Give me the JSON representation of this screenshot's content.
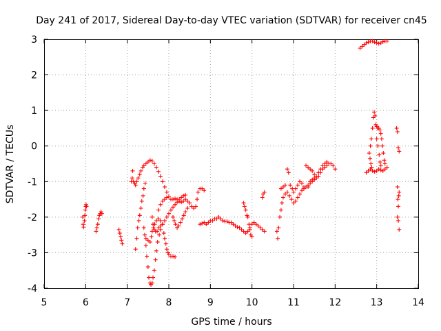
{
  "chart_data": {
    "type": "scatter",
    "title": "Day 241 of 2017, Sidereal Day-to-day VTEC variation (SDTVAR) for receiver cn45",
    "xlabel": "GPS time / hours",
    "ylabel": "SDTVAR / TECUs",
    "xlim": [
      5,
      14
    ],
    "ylim": [
      -4,
      3
    ],
    "xticks": [
      "5",
      "6",
      "7",
      "8",
      "9",
      "10",
      "11",
      "12",
      "13",
      "14"
    ],
    "yticks": [
      "-4",
      "-3",
      "-2",
      "-1",
      "0",
      "1",
      "2",
      "3"
    ],
    "grid": true,
    "marker": "plus",
    "series": [
      {
        "name": "SDTVAR",
        "color": "#ff0000",
        "points": [
          [
            5.93,
            -2.0
          ],
          [
            5.94,
            -2.2
          ],
          [
            5.95,
            -2.28
          ],
          [
            5.97,
            -2.1
          ],
          [
            5.98,
            -1.95
          ],
          [
            5.99,
            -1.8
          ],
          [
            6.0,
            -1.7
          ],
          [
            6.01,
            -1.65
          ],
          [
            6.02,
            -1.7
          ],
          [
            6.25,
            -2.4
          ],
          [
            6.27,
            -2.3
          ],
          [
            6.29,
            -2.2
          ],
          [
            6.31,
            -2.05
          ],
          [
            6.33,
            -1.95
          ],
          [
            6.35,
            -1.9
          ],
          [
            6.37,
            -1.85
          ],
          [
            6.39,
            -1.9
          ],
          [
            6.8,
            -2.35
          ],
          [
            6.82,
            -2.45
          ],
          [
            6.84,
            -2.55
          ],
          [
            6.86,
            -2.65
          ],
          [
            6.88,
            -2.75
          ],
          [
            7.1,
            -1.0
          ],
          [
            7.12,
            -0.9
          ],
          [
            7.13,
            -0.7
          ],
          [
            7.15,
            -1.0
          ],
          [
            7.18,
            -1.05
          ],
          [
            7.2,
            -1.1
          ],
          [
            7.23,
            -1.0
          ],
          [
            7.26,
            -0.9
          ],
          [
            7.3,
            -0.8
          ],
          [
            7.33,
            -0.7
          ],
          [
            7.37,
            -0.6
          ],
          [
            7.4,
            -0.55
          ],
          [
            7.45,
            -0.5
          ],
          [
            7.5,
            -0.45
          ],
          [
            7.55,
            -0.4
          ],
          [
            7.6,
            -0.42
          ],
          [
            7.65,
            -0.5
          ],
          [
            7.7,
            -0.6
          ],
          [
            7.75,
            -0.72
          ],
          [
            7.8,
            -0.85
          ],
          [
            7.85,
            -1.0
          ],
          [
            7.9,
            -1.15
          ],
          [
            7.95,
            -1.3
          ],
          [
            8.0,
            -1.42
          ],
          [
            8.05,
            -1.5
          ],
          [
            8.1,
            -1.5
          ],
          [
            8.15,
            -1.48
          ],
          [
            8.2,
            -1.5
          ],
          [
            8.25,
            -1.55
          ],
          [
            8.3,
            -1.58
          ],
          [
            8.35,
            -1.55
          ],
          [
            8.4,
            -1.5
          ],
          [
            8.45,
            -1.55
          ],
          [
            8.5,
            -1.6
          ],
          [
            8.55,
            -1.7
          ],
          [
            8.6,
            -1.75
          ],
          [
            8.65,
            -1.7
          ],
          [
            8.68,
            -1.5
          ],
          [
            7.2,
            -2.9
          ],
          [
            7.23,
            -2.6
          ],
          [
            7.25,
            -2.3
          ],
          [
            7.28,
            -2.1
          ],
          [
            7.3,
            -1.95
          ],
          [
            7.33,
            -1.75
          ],
          [
            7.35,
            -1.55
          ],
          [
            7.38,
            -1.4
          ],
          [
            7.4,
            -1.2
          ],
          [
            7.43,
            -1.05
          ],
          [
            7.4,
            -2.3
          ],
          [
            7.42,
            -2.5
          ],
          [
            7.45,
            -2.8
          ],
          [
            7.47,
            -3.1
          ],
          [
            7.5,
            -3.4
          ],
          [
            7.52,
            -3.7
          ],
          [
            7.55,
            -3.85
          ],
          [
            7.57,
            -3.9
          ],
          [
            7.6,
            -3.85
          ],
          [
            7.62,
            -3.7
          ],
          [
            7.65,
            -3.5
          ],
          [
            7.68,
            -3.2
          ],
          [
            7.7,
            -2.95
          ],
          [
            7.73,
            -2.7
          ],
          [
            7.77,
            -2.5
          ],
          [
            7.8,
            -2.35
          ],
          [
            7.85,
            -2.2
          ],
          [
            7.9,
            -2.1
          ],
          [
            7.95,
            -2.0
          ],
          [
            8.0,
            -1.9
          ],
          [
            8.05,
            -1.8
          ],
          [
            8.1,
            -1.72
          ],
          [
            8.15,
            -1.65
          ],
          [
            8.2,
            -1.58
          ],
          [
            8.25,
            -1.5
          ],
          [
            8.3,
            -1.45
          ],
          [
            8.35,
            -1.4
          ],
          [
            8.4,
            -1.38
          ],
          [
            7.45,
            -2.6
          ],
          [
            7.5,
            -2.65
          ],
          [
            7.55,
            -2.7
          ],
          [
            7.58,
            -2.55
          ],
          [
            7.6,
            -2.4
          ],
          [
            7.63,
            -2.3
          ],
          [
            7.66,
            -2.2
          ],
          [
            7.7,
            -2.1
          ],
          [
            7.75,
            -2.05
          ],
          [
            7.8,
            -2.1
          ],
          [
            7.85,
            -2.2
          ],
          [
            7.88,
            -2.45
          ],
          [
            7.9,
            -2.6
          ],
          [
            7.93,
            -2.75
          ],
          [
            7.95,
            -2.9
          ],
          [
            7.98,
            -3.0
          ],
          [
            8.0,
            -3.05
          ],
          [
            8.05,
            -3.1
          ],
          [
            8.1,
            -3.1
          ],
          [
            8.15,
            -3.12
          ],
          [
            7.6,
            -2.0
          ],
          [
            7.62,
            -2.2
          ],
          [
            7.65,
            -2.35
          ],
          [
            7.68,
            -2.4
          ],
          [
            7.72,
            -2.4
          ],
          [
            7.76,
            -2.3
          ],
          [
            7.8,
            -2.25
          ],
          [
            7.75,
            -1.8
          ],
          [
            7.8,
            -1.65
          ],
          [
            7.85,
            -1.55
          ],
          [
            7.9,
            -1.5
          ],
          [
            7.95,
            -1.45
          ],
          [
            8.1,
            -2.0
          ],
          [
            8.13,
            -2.1
          ],
          [
            8.16,
            -2.2
          ],
          [
            8.2,
            -2.3
          ],
          [
            8.24,
            -2.25
          ],
          [
            8.28,
            -2.15
          ],
          [
            8.32,
            -2.05
          ],
          [
            8.36,
            -1.95
          ],
          [
            8.4,
            -1.85
          ],
          [
            8.45,
            -1.75
          ],
          [
            8.7,
            -1.3
          ],
          [
            8.75,
            -1.2
          ],
          [
            8.8,
            -1.2
          ],
          [
            8.85,
            -1.25
          ],
          [
            8.75,
            -2.2
          ],
          [
            8.8,
            -2.18
          ],
          [
            8.85,
            -2.15
          ],
          [
            8.9,
            -2.2
          ],
          [
            8.95,
            -2.15
          ],
          [
            9.0,
            -2.1
          ],
          [
            9.05,
            -2.1
          ],
          [
            9.1,
            -2.05
          ],
          [
            9.15,
            -2.05
          ],
          [
            9.2,
            -2.0
          ],
          [
            9.25,
            -2.05
          ],
          [
            9.3,
            -2.1
          ],
          [
            9.35,
            -2.12
          ],
          [
            9.4,
            -2.12
          ],
          [
            9.45,
            -2.15
          ],
          [
            9.5,
            -2.15
          ],
          [
            9.55,
            -2.2
          ],
          [
            9.6,
            -2.25
          ],
          [
            9.65,
            -2.28
          ],
          [
            9.7,
            -2.3
          ],
          [
            9.75,
            -2.35
          ],
          [
            9.8,
            -2.4
          ],
          [
            9.85,
            -2.45
          ],
          [
            9.9,
            -2.4
          ],
          [
            9.95,
            -2.3
          ],
          [
            10.0,
            -2.2
          ],
          [
            10.05,
            -2.15
          ],
          [
            10.1,
            -2.2
          ],
          [
            10.15,
            -2.25
          ],
          [
            10.2,
            -2.3
          ],
          [
            10.25,
            -2.35
          ],
          [
            10.3,
            -2.4
          ],
          [
            9.8,
            -1.6
          ],
          [
            9.82,
            -1.7
          ],
          [
            9.85,
            -1.8
          ],
          [
            9.88,
            -1.95
          ],
          [
            9.9,
            -2.0
          ],
          [
            9.93,
            -2.2
          ],
          [
            9.95,
            -2.35
          ],
          [
            9.97,
            -2.5
          ],
          [
            10.0,
            -2.55
          ],
          [
            10.25,
            -1.45
          ],
          [
            10.27,
            -1.35
          ],
          [
            10.3,
            -1.3
          ],
          [
            10.6,
            -2.4
          ],
          [
            10.62,
            -2.6
          ],
          [
            10.64,
            -2.3
          ],
          [
            10.67,
            -2.0
          ],
          [
            10.7,
            -1.8
          ],
          [
            10.72,
            -1.6
          ],
          [
            10.75,
            -1.45
          ],
          [
            10.8,
            -1.35
          ],
          [
            10.85,
            -1.3
          ],
          [
            10.9,
            -1.4
          ],
          [
            10.95,
            -1.5
          ],
          [
            11.0,
            -1.6
          ],
          [
            11.05,
            -1.55
          ],
          [
            11.1,
            -1.45
          ],
          [
            11.15,
            -1.35
          ],
          [
            11.2,
            -1.25
          ],
          [
            11.25,
            -1.2
          ],
          [
            11.3,
            -1.15
          ],
          [
            11.35,
            -1.1
          ],
          [
            11.4,
            -1.05
          ],
          [
            11.45,
            -1.0
          ],
          [
            11.5,
            -0.95
          ],
          [
            11.55,
            -0.9
          ],
          [
            11.6,
            -0.85
          ],
          [
            11.65,
            -0.75
          ],
          [
            11.7,
            -0.65
          ],
          [
            11.75,
            -0.6
          ],
          [
            11.8,
            -0.55
          ],
          [
            11.85,
            -0.5
          ],
          [
            11.9,
            -0.5
          ],
          [
            11.95,
            -0.55
          ],
          [
            12.0,
            -0.65
          ],
          [
            10.7,
            -1.2
          ],
          [
            10.75,
            -1.15
          ],
          [
            10.8,
            -1.1
          ],
          [
            10.85,
            -0.65
          ],
          [
            10.88,
            -0.75
          ],
          [
            10.92,
            -1.1
          ],
          [
            10.97,
            -1.2
          ],
          [
            11.0,
            -1.3
          ],
          [
            11.05,
            -1.2
          ],
          [
            11.1,
            -1.1
          ],
          [
            11.15,
            -1.0
          ],
          [
            11.2,
            -1.05
          ],
          [
            11.25,
            -1.15
          ],
          [
            11.3,
            -0.55
          ],
          [
            11.35,
            -0.6
          ],
          [
            11.4,
            -0.65
          ],
          [
            11.45,
            -0.7
          ],
          [
            11.5,
            -0.8
          ],
          [
            11.55,
            -0.85
          ],
          [
            11.6,
            -0.75
          ],
          [
            11.65,
            -0.65
          ],
          [
            11.7,
            -0.55
          ],
          [
            11.75,
            -0.5
          ],
          [
            11.8,
            -0.45
          ],
          [
            11.35,
            -1.15
          ],
          [
            11.4,
            -1.0
          ],
          [
            11.45,
            -0.95
          ],
          [
            11.5,
            -0.9
          ],
          [
            12.6,
            2.75
          ],
          [
            12.65,
            2.8
          ],
          [
            12.7,
            2.85
          ],
          [
            12.75,
            2.9
          ],
          [
            12.8,
            2.92
          ],
          [
            12.85,
            2.95
          ],
          [
            12.9,
            2.95
          ],
          [
            12.95,
            2.92
          ],
          [
            13.0,
            2.9
          ],
          [
            13.05,
            2.88
          ],
          [
            13.1,
            2.9
          ],
          [
            13.15,
            2.93
          ],
          [
            13.2,
            2.95
          ],
          [
            13.25,
            2.95
          ],
          [
            12.75,
            -0.75
          ],
          [
            12.8,
            -0.7
          ],
          [
            12.85,
            -0.65
          ],
          [
            12.9,
            -0.7
          ],
          [
            12.95,
            -0.72
          ],
          [
            13.0,
            -0.7
          ],
          [
            13.05,
            -0.65
          ],
          [
            13.1,
            -0.68
          ],
          [
            13.15,
            -0.7
          ],
          [
            13.2,
            -0.65
          ],
          [
            13.25,
            -0.6
          ],
          [
            12.85,
            0.0
          ],
          [
            12.87,
            0.2
          ],
          [
            12.9,
            0.5
          ],
          [
            12.92,
            0.8
          ],
          [
            12.94,
            0.95
          ],
          [
            12.96,
            0.85
          ],
          [
            12.98,
            0.6
          ],
          [
            13.0,
            0.55
          ],
          [
            13.02,
            0.5
          ],
          [
            13.05,
            0.5
          ],
          [
            13.08,
            0.45
          ],
          [
            13.1,
            0.35
          ],
          [
            13.12,
            0.2
          ],
          [
            13.14,
            0.0
          ],
          [
            13.16,
            -0.2
          ],
          [
            13.18,
            -0.4
          ],
          [
            13.2,
            -0.5
          ],
          [
            12.82,
            -0.2
          ],
          [
            12.84,
            -0.35
          ],
          [
            12.86,
            -0.5
          ],
          [
            12.88,
            -0.6
          ],
          [
            13.0,
            0.2
          ],
          [
            13.03,
            0.0
          ],
          [
            13.06,
            -0.25
          ],
          [
            13.08,
            -0.45
          ],
          [
            13.1,
            -0.55
          ],
          [
            13.48,
            0.5
          ],
          [
            13.5,
            0.4
          ],
          [
            13.52,
            -0.05
          ],
          [
            13.54,
            -0.15
          ],
          [
            13.5,
            -1.15
          ],
          [
            13.51,
            -1.5
          ],
          [
            13.52,
            -1.7
          ],
          [
            13.53,
            -1.4
          ],
          [
            13.54,
            -1.3
          ],
          [
            13.5,
            -2.0
          ],
          [
            13.52,
            -2.1
          ],
          [
            13.54,
            -2.35
          ]
        ]
      }
    ]
  }
}
